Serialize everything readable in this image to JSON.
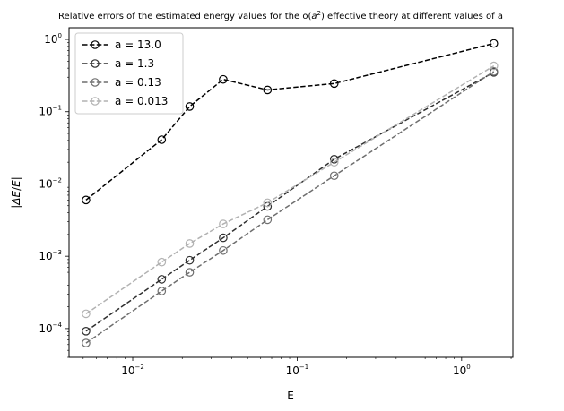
{
  "chart_data": {
    "type": "line",
    "title": {
      "prefix": "Relative errors of the estimated energy values for the o(",
      "a": "a",
      "exp": "2",
      "suffix": ") effective theory at different values of a"
    },
    "xlabel": "E",
    "ylabel": {
      "bar_l": "|",
      "delta": "Δ",
      "e1": "E",
      "slash": "/",
      "e2": "E",
      "bar_r": "|"
    },
    "x_scale": "log",
    "y_scale": "log",
    "xlim": [
      0.0041,
      2.05
    ],
    "ylim": [
      4e-05,
      1.45
    ],
    "x_ticks": [
      {
        "value": 0.01,
        "base": "10",
        "exp": "−2"
      },
      {
        "value": 0.1,
        "base": "10",
        "exp": "−1"
      },
      {
        "value": 1,
        "base": "10",
        "exp": "0"
      }
    ],
    "y_ticks": [
      {
        "value": 0.0001,
        "base": "10",
        "exp": "−4"
      },
      {
        "value": 0.001,
        "base": "10",
        "exp": "−3"
      },
      {
        "value": 0.01,
        "base": "10",
        "exp": "−2"
      },
      {
        "value": 0.1,
        "base": "10",
        "exp": "−1"
      },
      {
        "value": 1,
        "base": "10",
        "exp": "0"
      }
    ],
    "grid": false,
    "legend_position": "top-left",
    "x": [
      0.0052,
      0.015,
      0.0222,
      0.0355,
      0.066,
      0.168,
      1.57
    ],
    "series": [
      {
        "name": "a = 13.0",
        "color": "#000000",
        "values": [
          0.006,
          0.041,
          0.118,
          0.28,
          0.2,
          0.245,
          0.88
        ]
      },
      {
        "name": "a = 1.3",
        "color": "#2f2f2f",
        "values": [
          9.2e-05,
          0.00048,
          0.00088,
          0.0018,
          0.0049,
          0.022,
          0.35
        ]
      },
      {
        "name": "a = 0.13",
        "color": "#6e6e6e",
        "values": [
          6.3e-05,
          0.00033,
          0.0006,
          0.0012,
          0.0032,
          0.013,
          0.36
        ]
      },
      {
        "name": "a = 0.013",
        "color": "#b2b2b2",
        "values": [
          0.00016,
          0.00083,
          0.0015,
          0.0028,
          0.0055,
          0.02,
          0.43
        ]
      }
    ]
  }
}
